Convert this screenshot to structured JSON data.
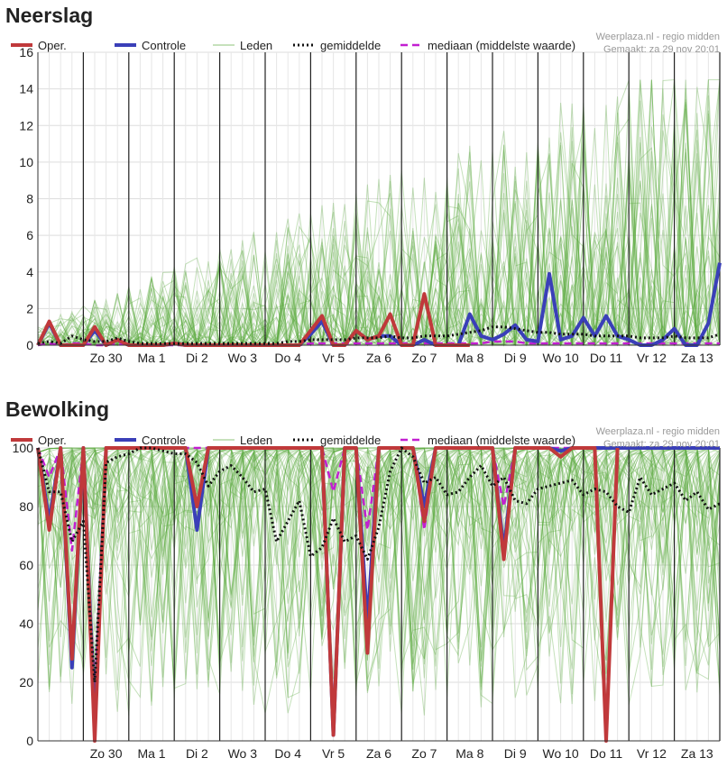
{
  "sections": [
    {
      "title": "Neerslag"
    },
    {
      "title": "Bewolking"
    }
  ],
  "source_line": "Weerplaza.nl - regio midden",
  "made_line": "Gemaakt: za 29 nov 20:01",
  "legend": {
    "oper": "Oper.",
    "controle": "Controle",
    "leden": "Leden",
    "gemiddelde": "gemiddelde",
    "mediaan": "mediaan (middelste waarde)"
  },
  "colors": {
    "oper": "#c0393b",
    "controle": "#3a3fb8",
    "leden": "#5aa83c",
    "gemiddelde": "#111111",
    "mediaan": "#c21fd1",
    "grid": "#dddddd",
    "day_line": "#222222"
  },
  "chart_data": [
    {
      "type": "line",
      "ylim": [
        0,
        16
      ],
      "yticks": [
        0,
        2,
        4,
        6,
        8,
        10,
        12,
        14,
        16
      ],
      "x_range": [
        0,
        15
      ],
      "day_labels": [
        "Zo 30",
        "Ma 1",
        "Di 2",
        "Wo 3",
        "Do 4",
        "Vr 5",
        "Za 6",
        "Zo 7",
        "Ma 8",
        "Di 9",
        "Wo 10",
        "Do 11",
        "Vr 12",
        "Za 13"
      ],
      "x": [
        0,
        0.25,
        0.5,
        0.75,
        1,
        1.25,
        1.5,
        1.75,
        2,
        2.25,
        2.5,
        2.75,
        3,
        3.25,
        3.5,
        3.75,
        4,
        4.25,
        4.5,
        4.75,
        5,
        5.25,
        5.5,
        5.75,
        6,
        6.25,
        6.5,
        6.75,
        7,
        7.25,
        7.5,
        7.75,
        8,
        8.25,
        8.5,
        8.75,
        9,
        9.25,
        9.5,
        9.75,
        10,
        10.25,
        10.5,
        10.75,
        11,
        11.25,
        11.5,
        11.75,
        12,
        12.25,
        12.5,
        12.75,
        13,
        13.25,
        13.5,
        13.75,
        14,
        14.25,
        14.5,
        14.75,
        15
      ],
      "series": [
        {
          "name": "Oper.",
          "values": [
            0,
            1.3,
            0,
            0,
            0,
            1.0,
            0,
            0.3,
            0,
            0,
            0,
            0,
            0.1,
            0,
            0,
            0,
            0,
            0,
            0,
            0,
            0,
            0,
            0,
            0,
            0.8,
            1.6,
            0,
            0,
            0.8,
            0.3,
            0.5,
            1.7,
            0,
            0,
            2.8,
            0,
            0,
            0,
            0,
            null,
            null,
            null,
            null,
            null,
            null,
            null,
            null,
            null,
            null,
            null,
            null,
            null,
            null,
            null,
            null,
            null,
            null,
            null,
            null,
            null,
            null
          ]
        },
        {
          "name": "Controle",
          "values": [
            0,
            1.2,
            0,
            0,
            0,
            0.8,
            0,
            0.3,
            0,
            0,
            0,
            0,
            0.1,
            0,
            0,
            0,
            0,
            0,
            0,
            0,
            0,
            0,
            0,
            0,
            0.6,
            1.3,
            0,
            0,
            0.8,
            0.3,
            0.5,
            0.5,
            0,
            0,
            0.3,
            0,
            0,
            0,
            1.7,
            0.5,
            0.3,
            0.6,
            1.1,
            0.3,
            0.2,
            3.9,
            0.3,
            0.5,
            1.5,
            0.5,
            1.6,
            0.5,
            0.3,
            0,
            0,
            0.3,
            0.9,
            0,
            0,
            1.2,
            4.5
          ]
        },
        {
          "name": "gemiddelde",
          "values": [
            0.1,
            0.2,
            0.1,
            0.5,
            0.3,
            0.2,
            0.2,
            0.4,
            0.2,
            0.1,
            0.1,
            0.1,
            0.1,
            0.1,
            0.1,
            0.1,
            0.1,
            0.1,
            0.1,
            0.1,
            0.1,
            0.1,
            0.2,
            0.2,
            0.3,
            0.3,
            0.3,
            0.3,
            0.4,
            0.4,
            0.4,
            0.5,
            0.4,
            0.4,
            0.5,
            0.5,
            0.5,
            0.6,
            0.7,
            0.8,
            1.0,
            1.0,
            0.9,
            0.8,
            0.7,
            0.7,
            0.6,
            0.6,
            0.6,
            0.5,
            0.5,
            0.5,
            0.5,
            0.4,
            0.4,
            0.4,
            0.5,
            0.4,
            0.4,
            0.4,
            0.6
          ]
        },
        {
          "name": "mediaan (middelste waarde)",
          "values": [
            0,
            0.1,
            0,
            0.1,
            0.1,
            0,
            0,
            0.1,
            0,
            0,
            0,
            0,
            0,
            0,
            0,
            0,
            0,
            0,
            0,
            0,
            0,
            0,
            0,
            0,
            0.1,
            0.1,
            0.1,
            0.1,
            0.1,
            0.1,
            0.1,
            0.1,
            0.1,
            0.1,
            0.1,
            0.1,
            0.1,
            0.1,
            0.1,
            0.1,
            0.2,
            0.2,
            0.2,
            0.1,
            0.1,
            0.1,
            0.1,
            0.1,
            0.1,
            0.1,
            0.1,
            0.1,
            0.1,
            0.1,
            0.1,
            0.1,
            0.1,
            0.1,
            0.1,
            0.1,
            0.1
          ]
        }
      ],
      "ensemble": {
        "name": "Leden",
        "members": 50,
        "shape": "precip",
        "max_value": 14.5
      }
    },
    {
      "type": "line",
      "ylim": [
        0,
        100
      ],
      "yticks": [
        0,
        20,
        40,
        60,
        80,
        100
      ],
      "x_range": [
        0,
        15
      ],
      "day_labels": [
        "Zo 30",
        "Ma 1",
        "Di 2",
        "Wo 3",
        "Do 4",
        "Vr 5",
        "Za 6",
        "Zo 7",
        "Ma 8",
        "Di 9",
        "Wo 10",
        "Do 11",
        "Vr 12",
        "Za 13"
      ],
      "x": [
        0,
        0.25,
        0.5,
        0.75,
        1,
        1.25,
        1.5,
        1.75,
        2,
        2.25,
        2.5,
        2.75,
        3,
        3.25,
        3.5,
        3.75,
        4,
        4.25,
        4.5,
        4.75,
        5,
        5.25,
        5.5,
        5.75,
        6,
        6.25,
        6.5,
        6.75,
        7,
        7.25,
        7.5,
        7.75,
        8,
        8.25,
        8.5,
        8.75,
        9,
        9.25,
        9.5,
        9.75,
        10,
        10.25,
        10.5,
        10.75,
        11,
        11.25,
        11.5,
        11.75,
        12,
        12.25,
        12.5,
        12.75,
        13,
        13.25,
        13.5,
        13.75,
        14,
        14.25,
        14.5,
        14.75,
        15
      ],
      "series": [
        {
          "name": "Oper.",
          "values": [
            100,
            72,
            100,
            28,
            100,
            0,
            100,
            100,
            100,
            100,
            100,
            100,
            100,
            100,
            80,
            100,
            100,
            100,
            100,
            100,
            100,
            100,
            100,
            100,
            100,
            100,
            2,
            100,
            100,
            30,
            100,
            100,
            100,
            100,
            75,
            100,
            100,
            100,
            100,
            100,
            100,
            62,
            100,
            100,
            100,
            100,
            97,
            100,
            100,
            100,
            0,
            100,
            null,
            null,
            null,
            null,
            null,
            null,
            null,
            null,
            null
          ]
        },
        {
          "name": "Controle",
          "values": [
            100,
            75,
            100,
            25,
            100,
            5,
            100,
            100,
            100,
            100,
            100,
            100,
            100,
            100,
            72,
            100,
            100,
            100,
            100,
            100,
            100,
            100,
            100,
            100,
            100,
            100,
            2,
            100,
            100,
            40,
            100,
            100,
            100,
            100,
            80,
            100,
            100,
            100,
            100,
            100,
            100,
            65,
            100,
            100,
            100,
            100,
            99,
            100,
            100,
            100,
            100,
            100,
            100,
            100,
            100,
            100,
            100,
            100,
            100,
            100,
            100
          ]
        },
        {
          "name": "gemiddelde",
          "values": [
            100,
            85,
            85,
            68,
            75,
            20,
            95,
            97,
            98,
            100,
            100,
            99,
            98,
            98,
            95,
            87,
            92,
            94,
            90,
            85,
            86,
            68,
            75,
            82,
            63,
            66,
            76,
            68,
            70,
            62,
            73,
            92,
            100,
            97,
            88,
            90,
            84,
            85,
            90,
            94,
            87,
            90,
            82,
            81,
            86,
            87,
            88,
            89,
            84,
            86,
            85,
            80,
            78,
            90,
            84,
            86,
            88,
            82,
            85,
            79,
            81
          ]
        },
        {
          "name": "mediaan (middelste waarde)",
          "values": [
            100,
            90,
            100,
            65,
            100,
            15,
            100,
            100,
            100,
            100,
            100,
            100,
            100,
            100,
            100,
            100,
            100,
            100,
            100,
            100,
            100,
            100,
            100,
            100,
            100,
            100,
            85,
            100,
            100,
            72,
            100,
            100,
            100,
            100,
            72,
            100,
            100,
            100,
            100,
            100,
            100,
            80,
            100,
            100,
            100,
            100,
            100,
            100,
            100,
            100,
            100,
            100,
            100,
            100,
            100,
            100,
            100,
            100,
            100,
            100,
            100
          ]
        }
      ],
      "ensemble": {
        "name": "Leden",
        "members": 50,
        "shape": "cloud"
      }
    }
  ]
}
